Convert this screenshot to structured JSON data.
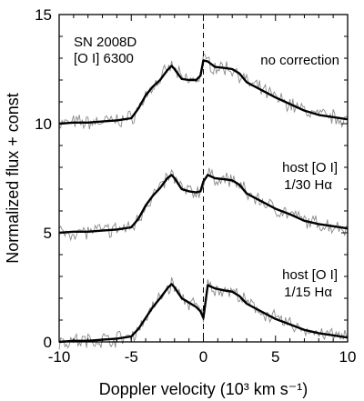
{
  "chart_data": {
    "type": "line",
    "xlabel": "Doppler velocity (10³ km s⁻¹)",
    "ylabel": "Normalized flux + const",
    "xlim": [
      -10,
      10
    ],
    "ylim": [
      0,
      15
    ],
    "x_ticks": [
      "-10",
      "-5",
      "0",
      "5",
      "10"
    ],
    "y_ticks": [
      "0",
      "5",
      "10",
      "15"
    ],
    "grid": false,
    "reference_line_x": 0,
    "annotation": [
      "SN 2008D",
      "[O I] 6300"
    ],
    "series": [
      {
        "name": "no correction",
        "label_lines": [
          "no correction"
        ],
        "offset": 10,
        "x": [
          -10,
          -9,
          -8,
          -7,
          -6,
          -5,
          -4.5,
          -4,
          -3.5,
          -3,
          -2.5,
          -2.2,
          -2,
          -1.5,
          -1,
          -0.5,
          -0.2,
          0,
          0.3,
          0.8,
          1.5,
          2,
          2.5,
          3,
          4,
          5,
          6,
          7,
          8,
          9,
          10
        ],
        "smooth": [
          0.0,
          0.05,
          0.05,
          0.1,
          0.15,
          0.25,
          0.7,
          1.3,
          1.7,
          2.0,
          2.45,
          2.65,
          2.5,
          2.05,
          2.0,
          2.0,
          2.2,
          2.9,
          2.85,
          2.6,
          2.55,
          2.5,
          2.3,
          1.9,
          1.55,
          1.2,
          0.9,
          0.6,
          0.4,
          0.3,
          0.2
        ]
      },
      {
        "name": "host [O I] 1/30 Hα",
        "label_lines": [
          "host [O I]",
          "1/30 Hα"
        ],
        "offset": 5,
        "x": [
          -10,
          -9,
          -8,
          -7,
          -6,
          -5,
          -4.5,
          -4,
          -3.5,
          -3,
          -2.5,
          -2.2,
          -2,
          -1.5,
          -1,
          -0.5,
          -0.2,
          0,
          0.3,
          0.8,
          1.5,
          2,
          2.5,
          3,
          4,
          5,
          6,
          7,
          8,
          9,
          10
        ],
        "smooth": [
          0.0,
          0.05,
          0.05,
          0.1,
          0.15,
          0.25,
          0.65,
          1.25,
          1.7,
          2.05,
          2.5,
          2.65,
          2.5,
          2.0,
          1.9,
          1.85,
          1.9,
          2.35,
          2.65,
          2.5,
          2.45,
          2.4,
          2.2,
          1.8,
          1.45,
          1.1,
          0.85,
          0.55,
          0.4,
          0.3,
          0.2
        ]
      },
      {
        "name": "host [O I] 1/15 Hα",
        "label_lines": [
          "host [O I]",
          "1/15 Hα"
        ],
        "offset": 0,
        "x": [
          -10,
          -9,
          -8,
          -7,
          -6,
          -5,
          -4.5,
          -4,
          -3.5,
          -3,
          -2.5,
          -2.2,
          -2,
          -1.5,
          -1,
          -0.5,
          -0.2,
          0,
          0.3,
          0.8,
          1.5,
          2,
          2.5,
          3,
          4,
          5,
          6,
          7,
          8,
          9,
          10
        ],
        "smooth": [
          0.0,
          0.05,
          0.05,
          0.1,
          0.15,
          0.25,
          0.6,
          1.1,
          1.6,
          2.0,
          2.45,
          2.65,
          2.5,
          2.0,
          1.8,
          1.6,
          1.4,
          1.1,
          2.6,
          2.45,
          2.35,
          2.3,
          2.1,
          1.75,
          1.4,
          1.05,
          0.8,
          0.55,
          0.4,
          0.3,
          0.2
        ]
      }
    ]
  }
}
